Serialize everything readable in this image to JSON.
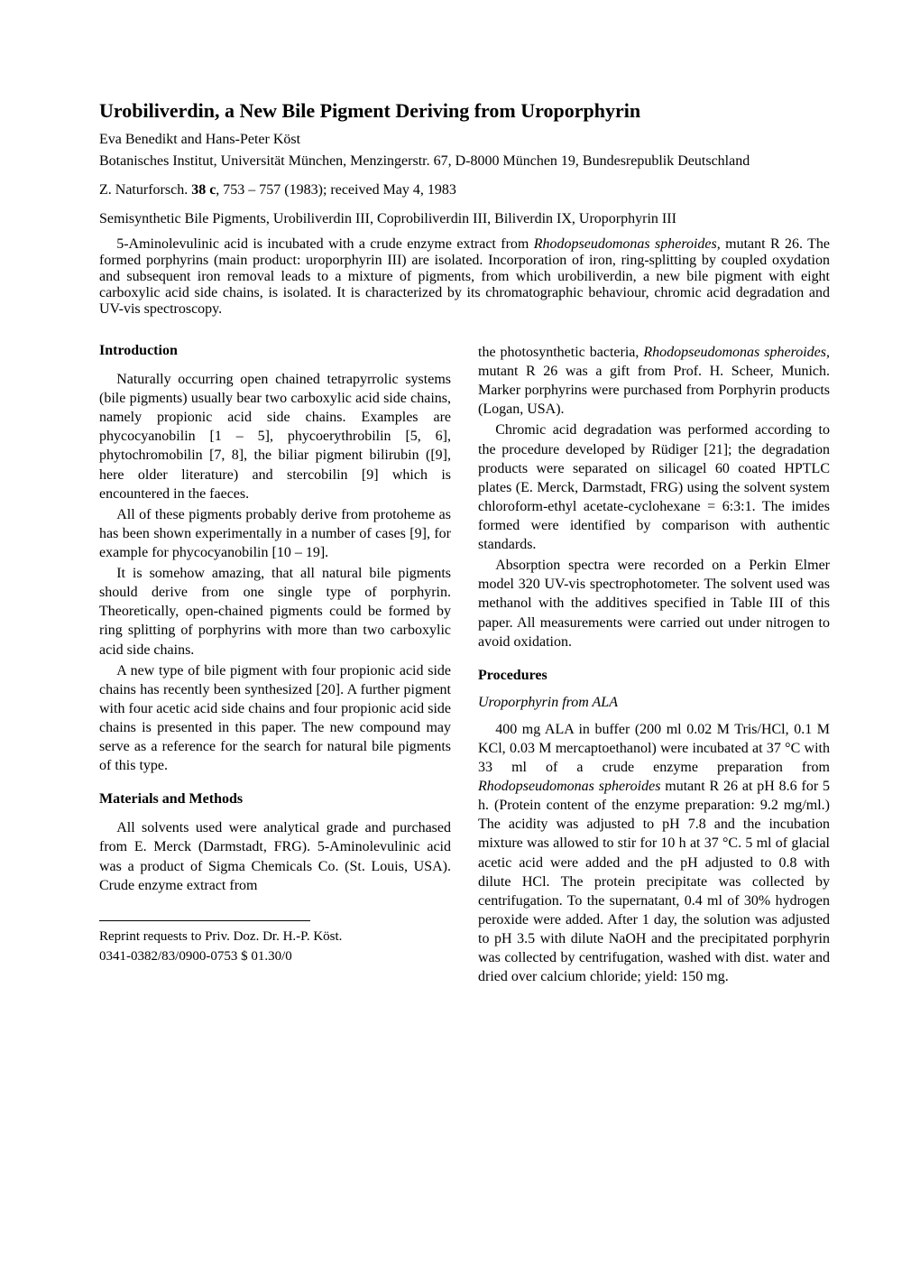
{
  "title": "Urobiliverdin, a New Bile Pigment Deriving from Uroporphyrin",
  "authors": "Eva Benedikt and Hans-Peter Köst",
  "affiliation": "Botanisches Institut, Universität München, Menzingerstr. 67, D-8000 München 19, Bundesrepublik Deutschland",
  "citation": "Z. Naturforsch. 38 c, 753 – 757 (1983); received May 4, 1983",
  "keywords": "Semisynthetic Bile Pigments, Urobiliverdin III, Coprobiliverdin III, Biliverdin IX, Uroporphyrin III",
  "abstract": "5-Aminolevulinic acid is incubated with a crude enzyme extract from Rhodopseudomonas spheroides, mutant R 26. The formed porphyrins (main product: uroporphyrin III) are isolated. Incorporation of iron, ring-splitting by coupled oxydation and subsequent iron removal leads to a mixture of pigments, from which urobiliverdin, a new bile pigment with eight carboxylic acid side chains, is isolated. It is characterized by its chromatographic behaviour, chromic acid degradation and UV-vis spectroscopy.",
  "left": {
    "h_intro": "Introduction",
    "p1": "Naturally occurring open chained tetrapyrrolic systems (bile pigments) usually bear two carboxylic acid side chains, namely propionic acid side chains. Examples are phycocyanobilin [1 – 5], phycoerythrobilin [5, 6], phytochromobilin [7, 8], the biliar pigment bilirubin ([9], here older literature) and stercobilin [9] which is encountered in the faeces.",
    "p2": "All of these pigments probably derive from protoheme as has been shown experimentally in a number of cases [9], for example for phycocyanobilin [10 – 19].",
    "p3": "It is somehow amazing, that all natural bile pigments should derive from one single type of porphyrin. Theoretically, open-chained pigments could be formed by ring splitting of porphyrins with more than two carboxylic acid side chains.",
    "p4": "A new type of bile pigment with four propionic acid side chains has recently been synthesized [20]. A further pigment with four acetic acid side chains and four propionic acid side chains is presented in this paper. The new compound may serve as a reference for the search for natural bile pigments of this type.",
    "h_mm": "Materials and Methods",
    "p5": "All solvents used were analytical grade and purchased from E. Merck (Darmstadt, FRG). 5-Aminolevulinic acid was a product of Sigma Chemicals Co. (St. Louis, USA). Crude enzyme extract from",
    "foot1": "Reprint requests to Priv. Doz. Dr. H.-P. Köst.",
    "foot2": "0341-0382/83/0900-0753   $ 01.30/0"
  },
  "right": {
    "p1a": "the photosynthetic bacteria, ",
    "p1b": "Rhodopseudomonas spheroides,",
    "p1c": " mutant R 26 was a gift from Prof. H. Scheer, Munich. Marker porphyrins were purchased from Porphyrin products (Logan, USA).",
    "p2": "Chromic acid degradation was performed according to the procedure developed by Rüdiger [21]; the degradation products were separated on silicagel 60 coated HPTLC plates (E. Merck, Darmstadt, FRG) using the solvent system chloroform-ethyl acetate-cyclohexane = 6:3:1. The imides formed were identified by comparison with authentic standards.",
    "p3": "Absorption spectra were recorded on a Perkin Elmer model 320 UV-vis spectrophotometer. The solvent used was methanol with the additives specified in Table III of this paper. All measurements were carried out under nitrogen to avoid oxidation.",
    "h_proc": "Procedures",
    "sub_uro": "Uroporphyrin from ALA",
    "p4a": "400 mg ALA in buffer (200 ml 0.02 ",
    "p4b": "M",
    "p4c": " Tris/HCl, 0.1 ",
    "p4d": "M",
    "p4e": " KCl, 0.03 ",
    "p4f": "M",
    "p4g": " mercaptoethanol) were incubated at 37 °C with 33 ml of a crude enzyme preparation from ",
    "p4h": "Rhodopseudomonas spheroides",
    "p4i": " mutant R 26 at pH 8.6 for 5 h. (Protein content of the enzyme preparation: 9.2 mg/ml.) The acidity was adjusted to pH 7.8 and the incubation mixture was allowed to stir for 10 h at 37 °C. 5 ml of glacial acetic acid were added and the pH adjusted to 0.8 with dilute HCl. The protein precipitate was collected by centrifugation. To the supernatant, 0.4 ml of 30% hydrogen peroxide were added. After 1 day, the solution was adjusted to pH 3.5 with dilute NaOH and the precipitated porphyrin was collected by centrifugation, washed with dist. water and dried over calcium chloride; yield: 150 mg."
  }
}
